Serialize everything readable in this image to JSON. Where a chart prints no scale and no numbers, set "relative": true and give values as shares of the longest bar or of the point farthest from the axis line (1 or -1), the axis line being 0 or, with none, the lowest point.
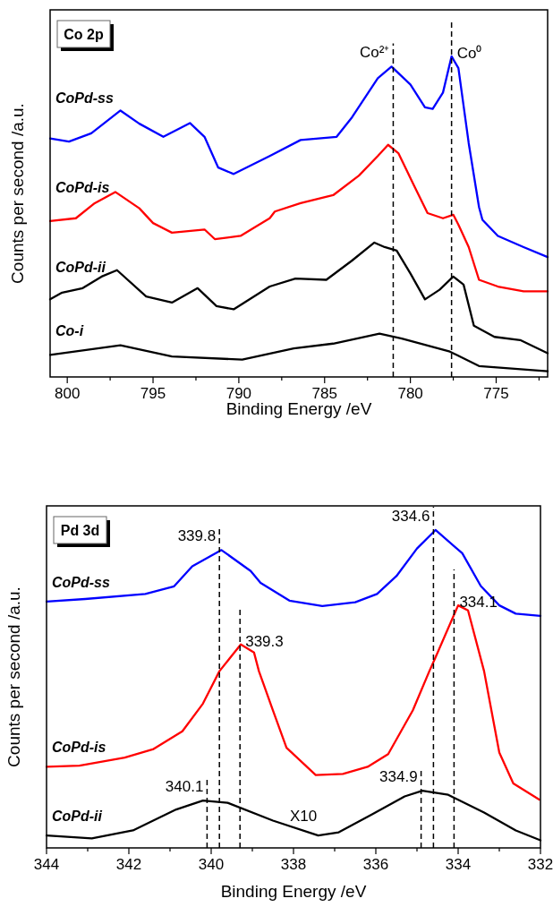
{
  "chart_data": [
    {
      "type": "line",
      "title": "Co 2p",
      "xlabel": "Binding Energy /eV",
      "ylabel": "Counts per second /a.u.",
      "relative": true,
      "line_style": "solid",
      "xlim": [
        801,
        772
      ],
      "xticks": [
        800,
        {
          "value": 797.5,
          "label": null
        },
        795,
        {
          "value": 792.5,
          "label": null
        },
        790,
        {
          "value": 787.5,
          "label": null
        },
        785,
        {
          "value": 782.5,
          "label": null
        },
        780,
        {
          "value": 777.5,
          "label": null
        },
        775,
        {
          "value": 772.5,
          "label": null
        }
      ],
      "ref_lines": [
        {
          "axis": "x",
          "value": 781.0,
          "label": "Co²⁺",
          "line_style": "dashed",
          "color": "#000000"
        },
        {
          "axis": "x",
          "value": 777.6,
          "label": "Co⁰",
          "line_style": "dashed",
          "color": "#000000"
        }
      ],
      "series": [
        {
          "name": "CoPd-ss",
          "color": "#0000ff",
          "x": [
            801,
            799.9,
            798.6,
            796.9,
            795.8,
            794.4,
            792.85,
            792.0,
            791.2,
            790.3,
            788.2,
            786.4,
            784.3,
            783.4,
            781.9,
            781.1,
            780.0,
            779.15,
            778.7,
            778.1,
            777.6,
            777.2,
            776.6,
            776.0,
            775.8,
            774.9,
            773.4,
            772
          ],
          "values": [
            0.744,
            0.734,
            0.76,
            0.831,
            0.79,
            0.749,
            0.792,
            0.749,
            0.653,
            0.633,
            0.689,
            0.739,
            0.749,
            0.81,
            0.932,
            0.968,
            0.912,
            0.841,
            0.836,
            0.887,
            1.0,
            0.963,
            0.729,
            0.53,
            0.49,
            0.44,
            0.405,
            0.374
          ]
        },
        {
          "name": "CoPd-is",
          "color": "#ff0000",
          "x": [
            801,
            799.5,
            798.4,
            797.2,
            795.8,
            795.0,
            793.9,
            792.0,
            791.4,
            789.9,
            788.2,
            787.9,
            786.4,
            784.5,
            783.0,
            781.9,
            781.3,
            780.7,
            779.8,
            779.0,
            778.1,
            777.5,
            777.2,
            776.6,
            776.0,
            774.9,
            773.4,
            772
          ],
          "values": [
            0.486,
            0.495,
            0.542,
            0.577,
            0.526,
            0.48,
            0.45,
            0.46,
            0.43,
            0.44,
            0.495,
            0.516,
            0.542,
            0.567,
            0.628,
            0.689,
            0.724,
            0.698,
            0.598,
            0.511,
            0.495,
            0.506,
            0.475,
            0.405,
            0.303,
            0.282,
            0.267,
            0.267
          ]
        },
        {
          "name": "CoPd-ii",
          "color": "#000000",
          "x": [
            801,
            800.3,
            799.1,
            798.0,
            797.1,
            795.4,
            793.9,
            792.4,
            791.3,
            790.3,
            788.2,
            786.7,
            784.9,
            783.4,
            782.1,
            781.5,
            780.8,
            780.0,
            779.15,
            778.3,
            777.5,
            776.9,
            776.3,
            775.1,
            773.6,
            772
          ],
          "values": [
            0.242,
            0.263,
            0.277,
            0.313,
            0.333,
            0.251,
            0.232,
            0.277,
            0.221,
            0.211,
            0.282,
            0.307,
            0.303,
            0.363,
            0.419,
            0.405,
            0.394,
            0.323,
            0.242,
            0.272,
            0.313,
            0.288,
            0.16,
            0.125,
            0.115,
            0.074
          ]
        },
        {
          "name": "Co-i",
          "color": "#000000",
          "x": [
            801,
            796.9,
            793.9,
            789.8,
            786.8,
            784.5,
            781.8,
            780.5,
            777.7,
            776.0,
            772
          ],
          "values": [
            0.069,
            0.099,
            0.064,
            0.054,
            0.089,
            0.104,
            0.135,
            0.12,
            0.079,
            0.034,
            0.018
          ]
        }
      ]
    },
    {
      "type": "line",
      "title": "Pd 3d",
      "xlabel": "Binding Energy /eV",
      "ylabel": "Counts per second /a.u.",
      "relative": true,
      "line_style": "solid",
      "xlim": [
        344,
        332
      ],
      "xticks": [
        344,
        {
          "value": 343,
          "label": null
        },
        342,
        {
          "value": 341,
          "label": null
        },
        340,
        {
          "value": 339,
          "label": null
        },
        338,
        {
          "value": 337,
          "label": null
        },
        336,
        {
          "value": 335,
          "label": null
        },
        334,
        {
          "value": 333,
          "label": null
        },
        332
      ],
      "ref_lines": [
        {
          "axis": "x",
          "value": 339.8,
          "label": "339.8",
          "line_style": "dashed",
          "color": "#000000"
        },
        {
          "axis": "x",
          "value": 334.6,
          "label": "334.6",
          "line_style": "dashed",
          "color": "#000000"
        },
        {
          "axis": "x",
          "value": 339.3,
          "label": "339.3",
          "line_style": "dashed",
          "color": "#000000"
        },
        {
          "axis": "x",
          "value": 334.1,
          "label": "334.1",
          "line_style": "dashed",
          "color": "#000000"
        },
        {
          "axis": "x",
          "value": 340.1,
          "label": "340.1",
          "line_style": "dashed",
          "color": "#000000"
        },
        {
          "axis": "x",
          "value": 334.9,
          "label": "334.9",
          "line_style": "dashed",
          "color": "#000000"
        }
      ],
      "annotations": [
        "X10"
      ],
      "series": [
        {
          "name": "CoPd-ss",
          "color": "#0000ff",
          "x": [
            344,
            343.06,
            341.6,
            340.9,
            340.46,
            339.75,
            339.04,
            338.8,
            338.1,
            337.3,
            336.5,
            335.97,
            335.5,
            335.0,
            334.55,
            333.9,
            333.45,
            333.0,
            332.6,
            332
          ],
          "values": [
            0.775,
            0.783,
            0.799,
            0.823,
            0.886,
            0.937,
            0.871,
            0.834,
            0.778,
            0.761,
            0.773,
            0.799,
            0.855,
            0.942,
            1.0,
            0.927,
            0.824,
            0.763,
            0.737,
            0.73
          ]
        },
        {
          "name": "CoPd-is",
          "color": "#ff0000",
          "x": [
            344,
            343.2,
            342.1,
            341.4,
            340.7,
            340.2,
            339.8,
            339.28,
            338.96,
            338.84,
            338.5,
            338.17,
            337.46,
            336.8,
            336.2,
            335.7,
            335.1,
            334.7,
            334.55,
            334.0,
            333.76,
            333.37,
            333.0,
            332.66,
            332.03
          ],
          "values": [
            0.255,
            0.259,
            0.284,
            0.311,
            0.367,
            0.454,
            0.556,
            0.64,
            0.615,
            0.556,
            0.433,
            0.315,
            0.229,
            0.233,
            0.255,
            0.295,
            0.433,
            0.556,
            0.599,
            0.763,
            0.747,
            0.556,
            0.3,
            0.203,
            0.152
          ]
        },
        {
          "name": "CoPd-ii",
          "color": "#000000",
          "x": [
            344,
            342.9,
            341.9,
            340.85,
            340.2,
            339.6,
            338.5,
            337.4,
            336.9,
            336.1,
            335.3,
            334.87,
            334.24,
            333.37,
            332.6,
            332
          ],
          "values": [
            0.039,
            0.03,
            0.055,
            0.121,
            0.149,
            0.142,
            0.086,
            0.039,
            0.049,
            0.105,
            0.162,
            0.18,
            0.167,
            0.111,
            0.055,
            0.024
          ]
        }
      ]
    }
  ]
}
